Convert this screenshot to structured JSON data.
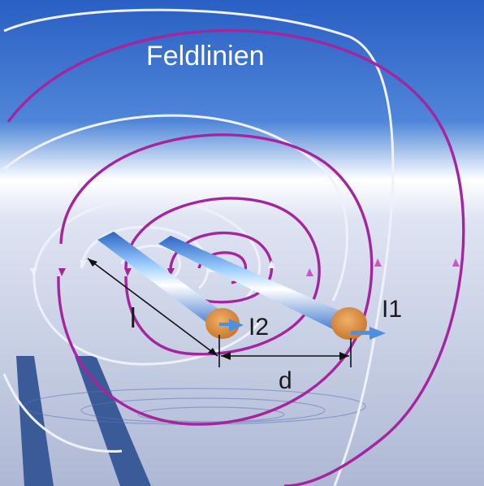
{
  "labels": {
    "title": "Feldlinien",
    "length": "l",
    "current_1": "I1",
    "current_2": "I2",
    "distance": "d"
  },
  "colors": {
    "sky_top": "#2a63c8",
    "sky_mid": "#6f9fe0",
    "horizon": "#ffffff",
    "floor": "#b6bfd8",
    "field_line_magenta": "#a4259e",
    "field_line_white": "#eef1fb",
    "conductor_blue": "#4f8fe0",
    "conductor_end": "#d88a3c",
    "dimension_line": "#111111",
    "text": "#ffffff",
    "label_text": "#1a1a1a"
  },
  "icons": {
    "current_direction": "arrow-icon",
    "field_direction": "triangle-arrow-icon"
  }
}
